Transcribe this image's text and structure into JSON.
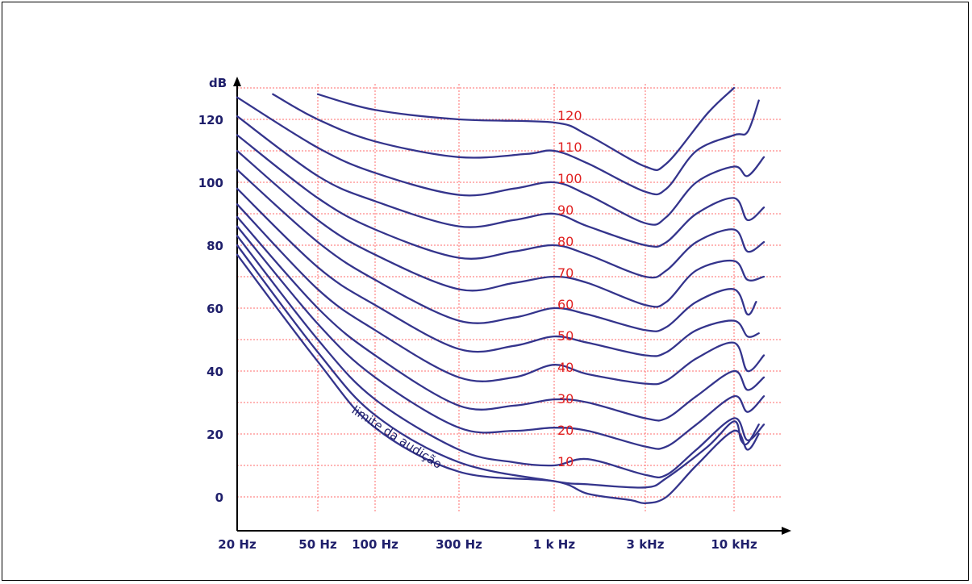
{
  "chart_data": {
    "type": "line",
    "title": "",
    "ylabel": "dB",
    "xlabel": "",
    "x_scale": "log",
    "grid": true,
    "colors": {
      "curves": "#34348c",
      "grid": "#ff6b6b",
      "curve_labels": "#e02020",
      "axis": "#000000",
      "axis_text": "#1f1f6b"
    },
    "x_ticks": [
      {
        "value": 20,
        "label": "20 Hz"
      },
      {
        "value": 50,
        "label": "50 Hz"
      },
      {
        "value": 100,
        "label": "100 Hz"
      },
      {
        "value": 300,
        "label": "300 Hz"
      },
      {
        "value": 1000,
        "label": "1 k Hz"
      },
      {
        "value": 3000,
        "label": "3 kHz"
      },
      {
        "value": 10000,
        "label": "10 kHz"
      }
    ],
    "y_ticks": [
      {
        "value": 0,
        "label": "0"
      },
      {
        "value": 20,
        "label": "20"
      },
      {
        "value": 40,
        "label": "40"
      },
      {
        "value": 60,
        "label": "60"
      },
      {
        "value": 80,
        "label": "80"
      },
      {
        "value": 100,
        "label": "100"
      },
      {
        "value": 120,
        "label": "120"
      }
    ],
    "threshold_label": "limite da audição",
    "series": [
      {
        "name": "120",
        "points": [
          [
            50,
            128
          ],
          [
            100,
            123
          ],
          [
            300,
            120
          ],
          [
            1000,
            119
          ],
          [
            1500,
            115
          ],
          [
            3000,
            105
          ],
          [
            4000,
            106
          ],
          [
            7000,
            122
          ],
          [
            10000,
            130
          ]
        ]
      },
      {
        "name": "110",
        "points": [
          [
            30,
            128
          ],
          [
            50,
            120
          ],
          [
            100,
            113
          ],
          [
            300,
            108
          ],
          [
            700,
            109
          ],
          [
            1000,
            110
          ],
          [
            1500,
            106
          ],
          [
            3000,
            97
          ],
          [
            4000,
            98
          ],
          [
            6000,
            110
          ],
          [
            10000,
            115
          ],
          [
            12000,
            116
          ],
          [
            14000,
            126
          ]
        ]
      },
      {
        "name": "100",
        "points": [
          [
            20,
            127
          ],
          [
            50,
            111
          ],
          [
            100,
            103
          ],
          [
            300,
            96
          ],
          [
            600,
            98
          ],
          [
            1000,
            100
          ],
          [
            1500,
            96
          ],
          [
            3000,
            87
          ],
          [
            4000,
            89
          ],
          [
            6000,
            100
          ],
          [
            10000,
            105
          ],
          [
            12000,
            102
          ],
          [
            15000,
            108
          ]
        ]
      },
      {
        "name": "90",
        "points": [
          [
            20,
            121
          ],
          [
            50,
            102
          ],
          [
            100,
            94
          ],
          [
            300,
            86
          ],
          [
            600,
            88
          ],
          [
            1000,
            90
          ],
          [
            1500,
            86
          ],
          [
            3000,
            80
          ],
          [
            4000,
            81
          ],
          [
            6000,
            90
          ],
          [
            10000,
            95
          ],
          [
            12000,
            88
          ],
          [
            15000,
            92
          ]
        ]
      },
      {
        "name": "80",
        "points": [
          [
            20,
            115
          ],
          [
            50,
            95
          ],
          [
            100,
            85
          ],
          [
            300,
            76
          ],
          [
            600,
            78
          ],
          [
            1000,
            80
          ],
          [
            1500,
            77
          ],
          [
            3000,
            70
          ],
          [
            4000,
            72
          ],
          [
            6000,
            81
          ],
          [
            10000,
            85
          ],
          [
            12000,
            78
          ],
          [
            15000,
            81
          ]
        ]
      },
      {
        "name": "70",
        "points": [
          [
            20,
            110
          ],
          [
            50,
            88
          ],
          [
            100,
            77
          ],
          [
            300,
            66
          ],
          [
            600,
            68
          ],
          [
            1000,
            70
          ],
          [
            1500,
            68
          ],
          [
            3000,
            61
          ],
          [
            4000,
            62
          ],
          [
            6000,
            72
          ],
          [
            10000,
            75
          ],
          [
            12000,
            69
          ],
          [
            15000,
            70
          ]
        ]
      },
      {
        "name": "60",
        "points": [
          [
            20,
            104
          ],
          [
            50,
            81
          ],
          [
            100,
            69
          ],
          [
            300,
            56
          ],
          [
            600,
            57
          ],
          [
            1000,
            60
          ],
          [
            1500,
            58
          ],
          [
            3000,
            53
          ],
          [
            4000,
            54
          ],
          [
            6000,
            62
          ],
          [
            10000,
            66
          ],
          [
            12000,
            58
          ],
          [
            13500,
            62
          ]
        ]
      },
      {
        "name": "50",
        "points": [
          [
            20,
            98
          ],
          [
            50,
            73
          ],
          [
            100,
            61
          ],
          [
            300,
            47
          ],
          [
            600,
            48
          ],
          [
            1000,
            51
          ],
          [
            1500,
            49
          ],
          [
            3000,
            45
          ],
          [
            4000,
            46
          ],
          [
            6000,
            53
          ],
          [
            10000,
            56
          ],
          [
            12000,
            51
          ],
          [
            14000,
            52
          ]
        ]
      },
      {
        "name": "40",
        "points": [
          [
            20,
            93
          ],
          [
            50,
            66
          ],
          [
            100,
            53
          ],
          [
            300,
            38
          ],
          [
            600,
            38
          ],
          [
            1000,
            42
          ],
          [
            1500,
            39
          ],
          [
            3000,
            36
          ],
          [
            4000,
            37
          ],
          [
            6000,
            44
          ],
          [
            10000,
            49
          ],
          [
            12000,
            40
          ],
          [
            15000,
            45
          ]
        ]
      },
      {
        "name": "30",
        "points": [
          [
            20,
            89
          ],
          [
            50,
            60
          ],
          [
            100,
            45
          ],
          [
            300,
            29
          ],
          [
            600,
            29
          ],
          [
            1000,
            31
          ],
          [
            1500,
            30
          ],
          [
            3000,
            25
          ],
          [
            4000,
            25
          ],
          [
            6000,
            32
          ],
          [
            10000,
            40
          ],
          [
            12000,
            34
          ],
          [
            15000,
            38
          ]
        ]
      },
      {
        "name": "20",
        "points": [
          [
            20,
            86
          ],
          [
            50,
            55
          ],
          [
            100,
            38
          ],
          [
            300,
            22
          ],
          [
            600,
            21
          ],
          [
            1000,
            22
          ],
          [
            1500,
            21
          ],
          [
            3000,
            16
          ],
          [
            4000,
            16
          ],
          [
            6000,
            23
          ],
          [
            10000,
            32
          ],
          [
            12000,
            27
          ],
          [
            15000,
            32
          ]
        ]
      },
      {
        "name": "10",
        "points": [
          [
            20,
            83
          ],
          [
            50,
            50
          ],
          [
            100,
            31
          ],
          [
            300,
            15
          ],
          [
            600,
            11
          ],
          [
            1000,
            10
          ],
          [
            1500,
            12
          ],
          [
            3000,
            7
          ],
          [
            4000,
            7
          ],
          [
            6000,
            15
          ],
          [
            10000,
            25
          ],
          [
            12000,
            18
          ],
          [
            15000,
            23
          ]
        ]
      },
      {
        "name": "",
        "points": [
          [
            20,
            80
          ],
          [
            50,
            46
          ],
          [
            100,
            26
          ],
          [
            300,
            11
          ],
          [
            1000,
            5
          ],
          [
            1500,
            4
          ],
          [
            3000,
            3
          ],
          [
            4000,
            6
          ],
          [
            7000,
            16
          ],
          [
            10000,
            24
          ],
          [
            11000,
            18
          ],
          [
            12000,
            17
          ],
          [
            14000,
            23
          ]
        ]
      },
      {
        "name": "",
        "points": [
          [
            20,
            77
          ],
          [
            50,
            43
          ],
          [
            100,
            22
          ],
          [
            300,
            8
          ],
          [
            1000,
            5
          ],
          [
            1500,
            1
          ],
          [
            2500,
            -1
          ],
          [
            3000,
            -2
          ],
          [
            4000,
            0
          ],
          [
            6000,
            10
          ],
          [
            10000,
            21
          ],
          [
            12000,
            15
          ],
          [
            14000,
            20
          ]
        ]
      }
    ]
  }
}
